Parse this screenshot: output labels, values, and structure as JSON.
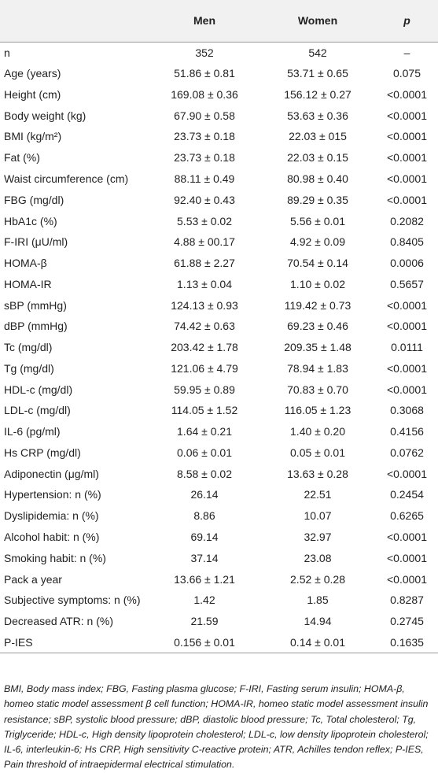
{
  "table": {
    "columns": [
      "Men",
      "Women",
      "p"
    ],
    "rows": [
      [
        "n",
        "352",
        "542",
        "–"
      ],
      [
        "Age (years)",
        "51.86 ± 0.81",
        "53.71 ± 0.65",
        "0.075"
      ],
      [
        "Height (cm)",
        "169.08 ± 0.36",
        "156.12 ± 0.27",
        "<0.0001"
      ],
      [
        "Body weight (kg)",
        "67.90 ± 0.58",
        "53.63 ± 0.36",
        "<0.0001"
      ],
      [
        "BMI (kg/m²)",
        "23.73 ± 0.18",
        "22.03 ± 015",
        "<0.0001"
      ],
      [
        "Fat (%)",
        "23.73 ± 0.18",
        "22.03 ± 0.15",
        "<0.0001"
      ],
      [
        "Waist circumference (cm)",
        "88.11 ± 0.49",
        "80.98 ± 0.40",
        "<0.0001"
      ],
      [
        "FBG (mg/dl)",
        "92.40 ± 0.43",
        "89.29 ± 0.35",
        "<0.0001"
      ],
      [
        "HbA1c (%)",
        "5.53 ± 0.02",
        "5.56 ± 0.01",
        "0.2082"
      ],
      [
        "F-IRI (μU/ml)",
        "4.88 ± 00.17",
        "4.92 ± 0.09",
        "0.8405"
      ],
      [
        "HOMA-β",
        "61.88 ± 2.27",
        "70.54 ± 0.14",
        "0.0006"
      ],
      [
        "HOMA-IR",
        "1.13 ± 0.04",
        "1.10 ± 0.02",
        "0.5657"
      ],
      [
        "sBP (mmHg)",
        "124.13 ± 0.93",
        "119.42 ± 0.73",
        "<0.0001"
      ],
      [
        "dBP (mmHg)",
        "74.42 ± 0.63",
        "69.23 ± 0.46",
        "<0.0001"
      ],
      [
        "Tc (mg/dl)",
        "203.42 ± 1.78",
        "209.35 ± 1.48",
        "0.0111"
      ],
      [
        "Tg (mg/dl)",
        "121.06 ± 4.79",
        "78.94 ± 1.83",
        "<0.0001"
      ],
      [
        "HDL-c (mg/dl)",
        "59.95 ± 0.89",
        "70.83 ± 0.70",
        "<0.0001"
      ],
      [
        "LDL-c (mg/dl)",
        "114.05 ± 1.52",
        "116.05 ± 1.23",
        "0.3068"
      ],
      [
        "IL-6 (pg/ml)",
        "1.64 ± 0.21",
        "1.40 ± 0.20",
        "0.4156"
      ],
      [
        "Hs CRP (mg/dl)",
        "0.06 ± 0.01",
        "0.05 ± 0.01",
        "0.0762"
      ],
      [
        "Adiponectin (μg/ml)",
        "8.58 ± 0.02",
        "13.63 ± 0.28",
        "<0.0001"
      ],
      [
        "Hypertension: n (%)",
        "26.14",
        "22.51",
        "0.2454"
      ],
      [
        "Dyslipidemia: n (%)",
        "8.86",
        "10.07",
        "0.6265"
      ],
      [
        "Alcohol habit: n (%)",
        "69.14",
        "32.97",
        "<0.0001"
      ],
      [
        "Smoking habit: n (%)",
        "37.14",
        "23.08",
        "<0.0001"
      ],
      [
        "Pack a year",
        "13.66 ± 1.21",
        "2.52 ± 0.28",
        "<0.0001"
      ],
      [
        "Subjective symptoms: n (%)",
        "1.42",
        "1.85",
        "0.8287"
      ],
      [
        "Decreased ATR: n (%)",
        "21.59",
        "14.94",
        "0.2745"
      ],
      [
        "P-IES",
        "0.156 ± 0.01",
        "0.14 ± 0.01",
        "0.1635"
      ]
    ],
    "footnote": "BMI, Body mass index; FBG, Fasting plasma glucose; F-IRI, Fasting serum insulin; HOMA-β, homeo static model assessment β cell function; HOMA-IR, homeo static model assessment insulin resistance; sBP, systolic blood pressure; dBP, diastolic blood pressure; Tc, Total cholesterol; Tg, Triglyceride; HDL-c, High density lipoprotein cholesterol; LDL-c, low density lipoprotein cholesterol; IL-6, interleukin-6; Hs CRP, High sensitivity C-reactive protein; ATR, Achilles tendon reflex; P-IES, Pain threshold of intraepidermal electrical stimulation."
  }
}
